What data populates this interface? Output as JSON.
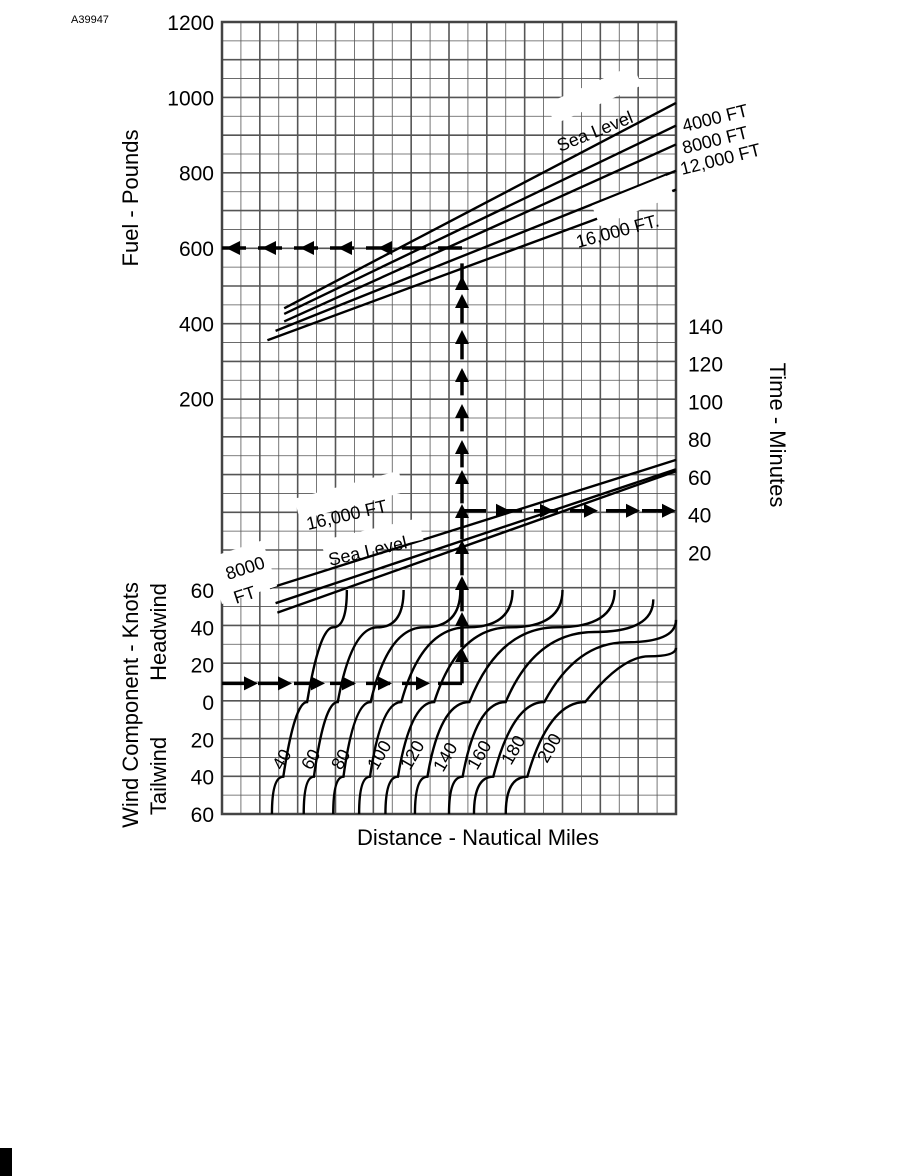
{
  "figure_code": "A39947",
  "chart_data": {
    "type": "line",
    "title": "",
    "xlabel": "Distance - Nautical Miles",
    "fuel_panel": {
      "ylabel": "Fuel - Pounds",
      "yticks": [
        "1200",
        "1000",
        "800",
        "600",
        "400",
        "200"
      ],
      "ylim": [
        0,
        1200
      ],
      "series": [
        {
          "name": "Sea Level",
          "label_lines": [
            "Sea Level"
          ],
          "points": [
            [
              0.137,
              440
            ],
            [
              1,
              985
            ]
          ]
        },
        {
          "name": "4000 FT",
          "label_lines": [
            "4000 FT"
          ],
          "points": [
            [
              0.137,
              425
            ],
            [
              1,
              925
            ]
          ]
        },
        {
          "name": "8000 FT",
          "label_lines": [
            "8000 FT"
          ],
          "points": [
            [
              0.137,
              405
            ],
            [
              1,
              875
            ]
          ]
        },
        {
          "name": "12,000 FT",
          "label_lines": [
            "12,000 FT"
          ],
          "points": [
            [
              0.118,
              380
            ],
            [
              1,
              805
            ]
          ]
        },
        {
          "name": "16,000 FT.",
          "label_lines": [
            "16,000 FT."
          ],
          "points": [
            [
              0.1,
              355
            ],
            [
              1,
              755
            ]
          ]
        }
      ]
    },
    "time_panel": {
      "ylabel": "Time - Minutes",
      "yticks": [
        "140",
        "120",
        "100",
        "80",
        "60",
        "40",
        "20"
      ],
      "ylim": [
        0,
        140
      ],
      "series": [
        {
          "name": "16,000 FT",
          "label_lines": [
            "16,000 FT"
          ],
          "points": [
            [
              0.105,
              1
            ],
            [
              1,
              69
            ]
          ]
        },
        {
          "name": "8000 FT",
          "label_lines": [
            "8000",
            "FT"
          ],
          "points": [
            [
              0.118,
              -7
            ],
            [
              1,
              64
            ]
          ]
        },
        {
          "name": "Sea Level",
          "label_lines": [
            "Sea Level"
          ],
          "points": [
            [
              0.122,
              -12
            ],
            [
              1,
              63
            ]
          ]
        }
      ]
    },
    "wind_panel": {
      "ylabel": "Wind Component - Knots",
      "headwind_label": "Headwind",
      "tailwind_label": "Tailwind",
      "yticks": [
        "60",
        "40",
        "20",
        "0",
        "20",
        "40",
        "60"
      ],
      "ylim": [
        -60,
        60
      ],
      "curve_labels": [
        "40",
        "60",
        "80",
        "100",
        "120",
        "140",
        "160",
        "180",
        "200"
      ],
      "curves": [
        {
          "label": "40",
          "points": [
            [
              0.11,
              -60
            ],
            [
              0.16,
              -20
            ],
            [
              0.215,
              20
            ],
            [
              0.275,
              60
            ]
          ]
        },
        {
          "label": "60",
          "points": [
            [
              0.18,
              -60
            ],
            [
              0.225,
              -20
            ],
            [
              0.285,
              20
            ],
            [
              0.4,
              60
            ]
          ]
        },
        {
          "label": "80",
          "points": [
            [
              0.245,
              -60
            ],
            [
              0.29,
              -20
            ],
            [
              0.365,
              20
            ],
            [
              0.525,
              60
            ]
          ]
        },
        {
          "label": "100",
          "points": [
            [
              0.302,
              -60
            ],
            [
              0.35,
              -20
            ],
            [
              0.44,
              20
            ],
            [
              0.64,
              60
            ]
          ]
        },
        {
          "label": "120",
          "points": [
            [
              0.36,
              -60
            ],
            [
              0.415,
              -20
            ],
            [
              0.52,
              20
            ],
            [
              0.75,
              60
            ]
          ]
        },
        {
          "label": "140",
          "points": [
            [
              0.425,
              -60
            ],
            [
              0.48,
              -20
            ],
            [
              0.61,
              20
            ],
            [
              0.865,
              60
            ]
          ]
        },
        {
          "label": "160",
          "points": [
            [
              0.5,
              -60
            ],
            [
              0.56,
              -20
            ],
            [
              0.69,
              20
            ],
            [
              0.95,
              55
            ]
          ]
        },
        {
          "label": "180",
          "points": [
            [
              0.555,
              -60
            ],
            [
              0.64,
              -20
            ],
            [
              0.78,
              20
            ],
            [
              1,
              44
            ]
          ]
        },
        {
          "label": "200",
          "points": [
            [
              0.625,
              -60
            ],
            [
              0.72,
              -20
            ],
            [
              0.88,
              20
            ],
            [
              1,
              29
            ]
          ]
        }
      ]
    },
    "example_path": {
      "headwind_knots": 10,
      "time_minutes": 42,
      "fuel_pounds": 600
    }
  }
}
